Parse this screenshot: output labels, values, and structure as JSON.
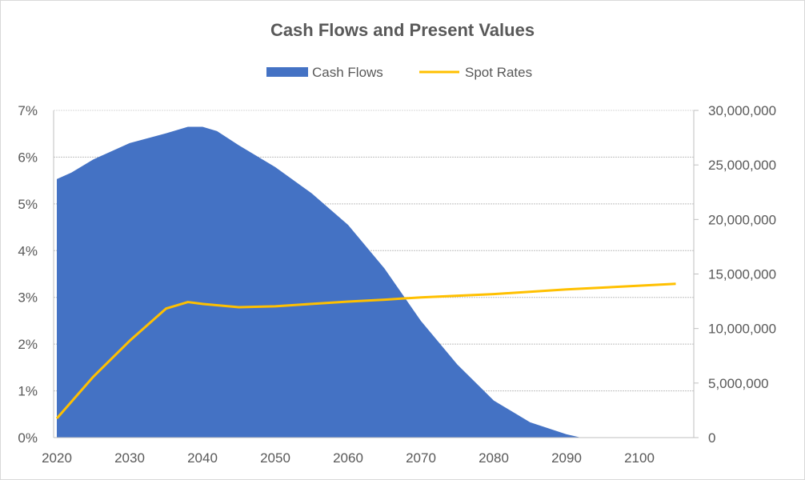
{
  "chart_data": {
    "type": "area+line",
    "title": "Cash Flows and Present Values",
    "legend_position": "top",
    "grid": true,
    "x_ticks": [
      2020,
      2030,
      2040,
      2050,
      2060,
      2070,
      2080,
      2090,
      2100
    ],
    "xlim": [
      2020,
      2107.5
    ],
    "y_left": {
      "ticks": [
        "0%",
        "1%",
        "2%",
        "3%",
        "4%",
        "5%",
        "6%",
        "7%"
      ],
      "range": [
        0,
        7
      ]
    },
    "y_right": {
      "ticks": [
        "0",
        "5,000,000",
        "10,000,000",
        "15,000,000",
        "20,000,000",
        "25,000,000",
        "30,000,000"
      ],
      "range": [
        0,
        30000000
      ]
    },
    "series": [
      {
        "name": "Cash Flows",
        "type": "area",
        "axis": "right",
        "color": "#4472C4",
        "x": [
          2020,
          2022,
          2025,
          2030,
          2035,
          2038,
          2040,
          2042,
          2045,
          2050,
          2055,
          2060,
          2065,
          2070,
          2075,
          2080,
          2085,
          2090,
          2092
        ],
        "values": [
          23700000,
          24300000,
          25500000,
          27000000,
          27900000,
          28500000,
          28500000,
          28100000,
          26800000,
          24800000,
          22400000,
          19500000,
          15500000,
          10700000,
          6700000,
          3400000,
          1400000,
          300000,
          0
        ]
      },
      {
        "name": "Spot Rates",
        "type": "line",
        "axis": "left",
        "color": "#FFC000",
        "x": [
          2020,
          2025,
          2030,
          2035,
          2038,
          2040,
          2045,
          2050,
          2055,
          2060,
          2065,
          2070,
          2080,
          2090,
          2100,
          2105
        ],
        "values": [
          0.41,
          1.3,
          2.07,
          2.76,
          2.9,
          2.86,
          2.79,
          2.81,
          2.86,
          2.91,
          2.95,
          3.0,
          3.07,
          3.17,
          3.25,
          3.29
        ]
      }
    ]
  }
}
